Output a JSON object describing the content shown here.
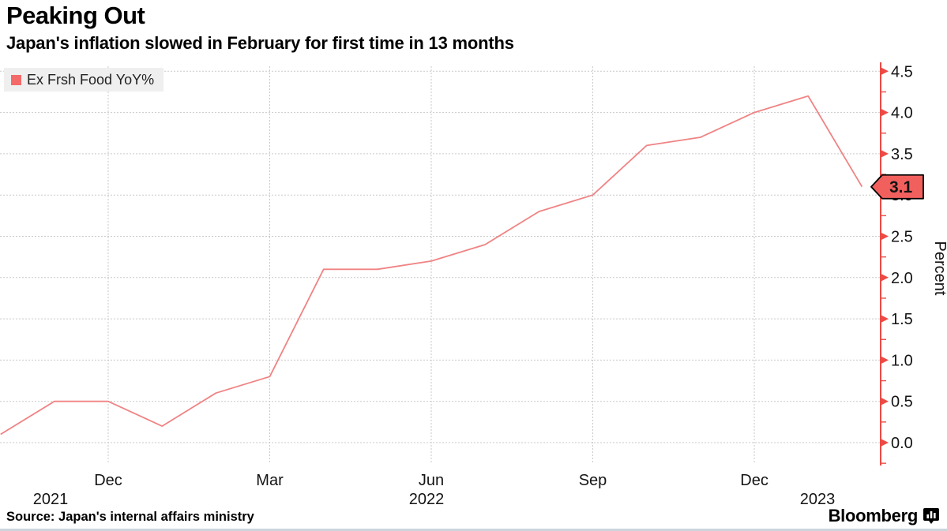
{
  "header": {
    "title": "Peaking Out",
    "subtitle": "Japan's inflation slowed in February for first time in 13 months"
  },
  "legend": {
    "label": "Ex Frsh Food YoY%",
    "swatch_color": "#f4696a"
  },
  "footer": {
    "source": "Source: Japan's internal affairs ministry",
    "brand": "Bloomberg"
  },
  "chart_data": {
    "type": "line",
    "title": "Peaking Out",
    "subtitle": "Japan's inflation slowed in February for first time in 13 months",
    "ylabel": "Percent",
    "ylim": [
      -0.3,
      4.65
    ],
    "grid": "dotted",
    "legend_position": "top-left",
    "axis_side": "right",
    "y_ticks": [
      0.0,
      0.5,
      1.0,
      1.5,
      2.0,
      2.5,
      3.0,
      3.5,
      4.0,
      4.5
    ],
    "series": [
      {
        "name": "Ex Frsh Food YoY%",
        "color": "#f08384",
        "x": [
          "Oct 2021",
          "Nov 2021",
          "Dec 2021",
          "Jan 2022",
          "Feb 2022",
          "Mar 2022",
          "Apr 2022",
          "May 2022",
          "Jun 2022",
          "Jul 2022",
          "Aug 2022",
          "Sep 2022",
          "Oct 2022",
          "Nov 2022",
          "Dec 2022",
          "Jan 2023",
          "Feb 2023"
        ],
        "values": [
          0.1,
          0.5,
          0.5,
          0.2,
          0.6,
          0.8,
          2.1,
          2.1,
          2.2,
          2.4,
          2.8,
          3.0,
          3.6,
          3.7,
          4.0,
          4.2,
          3.1
        ]
      }
    ],
    "x_gridlines": [
      {
        "index": 2,
        "label": "Dec"
      },
      {
        "index": 5,
        "label": "Mar"
      },
      {
        "index": 8,
        "label": "Jun"
      },
      {
        "index": 11,
        "label": "Sep"
      },
      {
        "index": 14,
        "label": "Dec"
      }
    ],
    "year_labels": [
      "2021",
      "2022",
      "2023"
    ],
    "last_point_label": "3.1",
    "colors": {
      "line": "#f08384",
      "axis": "#ee4a45",
      "badge_fill": "#f2605e",
      "grid": "#c9c9c9",
      "tick_text": "#141414",
      "legend_bg": "#efefef"
    }
  }
}
